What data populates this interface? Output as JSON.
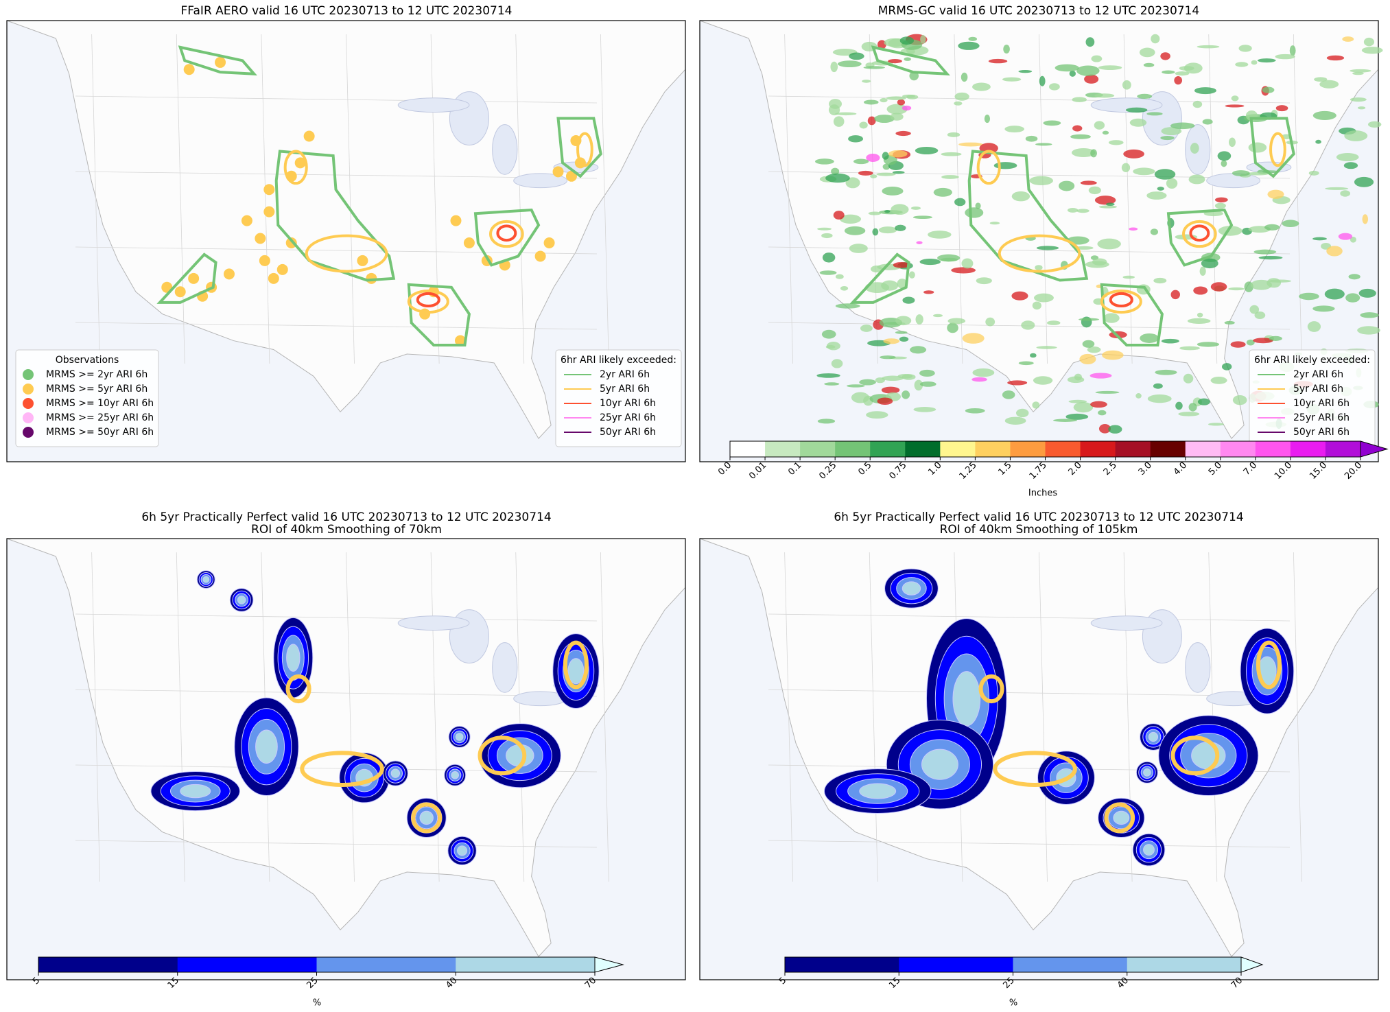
{
  "panels": [
    {
      "title": "FFaIR AERO valid 16 UTC 20230713 to 12 UTC 20230714",
      "observations_legend": {
        "title": "Observations",
        "items": [
          {
            "label": "MRMS >= 2yr ARI 6h",
            "color": "#74c476"
          },
          {
            "label": "MRMS >= 5yr ARI 6h",
            "color": "#fecb52"
          },
          {
            "label": "MRMS >= 10yr ARI 6h",
            "color": "#fd5030"
          },
          {
            "label": "MRMS >= 25yr ARI 6h",
            "color": "#ffb6f6"
          },
          {
            "label": "MRMS >= 50yr ARI 6h",
            "color": "#66076a"
          }
        ]
      },
      "ari_legend": {
        "title": "6hr ARI likely exceeded:",
        "items": [
          {
            "label": "2yr ARI 6h",
            "color": "#74c476"
          },
          {
            "label": "5yr ARI 6h",
            "color": "#fecb52"
          },
          {
            "label": "10yr ARI 6h",
            "color": "#fd5030"
          },
          {
            "label": "25yr ARI 6h",
            "color": "#ff88f0"
          },
          {
            "label": "50yr ARI 6h",
            "color": "#66076a"
          }
        ]
      }
    },
    {
      "title": "MRMS-GC valid 16 UTC 20230713 to 12 UTC 20230714",
      "ari_legend": {
        "title": "6hr ARI likely exceeded:",
        "items": [
          {
            "label": "2yr ARI 6h",
            "color": "#74c476"
          },
          {
            "label": "5yr ARI 6h",
            "color": "#fecb52"
          },
          {
            "label": "10yr ARI 6h",
            "color": "#fd5030"
          },
          {
            "label": "25yr ARI 6h",
            "color": "#ff88f0"
          },
          {
            "label": "50yr ARI 6h",
            "color": "#66076a"
          }
        ]
      },
      "colorbar": {
        "label": "Inches",
        "ticks": [
          "0.0",
          "0.01",
          "0.1",
          "0.25",
          "0.5",
          "0.75",
          "1.0",
          "1.25",
          "1.5",
          "1.75",
          "2.0",
          "2.5",
          "3.0",
          "4.0",
          "5.0",
          "7.0",
          "10.0",
          "15.0",
          "20.0"
        ],
        "colors": [
          "#ffffff",
          "#c7e9c0",
          "#a1d99b",
          "#74c476",
          "#31a354",
          "#006d2c",
          "#fff68f",
          "#fed060",
          "#fd9c40",
          "#f85a2f",
          "#d7191c",
          "#a50f25",
          "#670000",
          "#ffbbf4",
          "#ff88f0",
          "#ff55ee",
          "#e91cf0",
          "#b10ed9"
        ],
        "extend_color": "#9000d0"
      }
    },
    {
      "title": "6h 5yr Practically Perfect valid 16 UTC 20230713 to 12 UTC 20230714",
      "subtitle": "ROI of 40km Smoothing of 70km",
      "colorbar": {
        "label": "%",
        "ticks": [
          5,
          15,
          25,
          40,
          70
        ],
        "colors": [
          "#00008b",
          "#0000ff",
          "#6495ed",
          "#add8e6"
        ],
        "extend_color": "#e0ffff"
      }
    },
    {
      "title": "6h 5yr Practically Perfect valid 16 UTC 20230713 to 12 UTC 20230714",
      "subtitle": "ROI of 40km Smoothing of 105km",
      "colorbar": {
        "label": "%",
        "ticks": [
          5,
          15,
          25,
          40,
          70
        ],
        "colors": [
          "#00008b",
          "#0000ff",
          "#6495ed",
          "#add8e6"
        ],
        "extend_color": "#e0ffff"
      }
    }
  ]
}
